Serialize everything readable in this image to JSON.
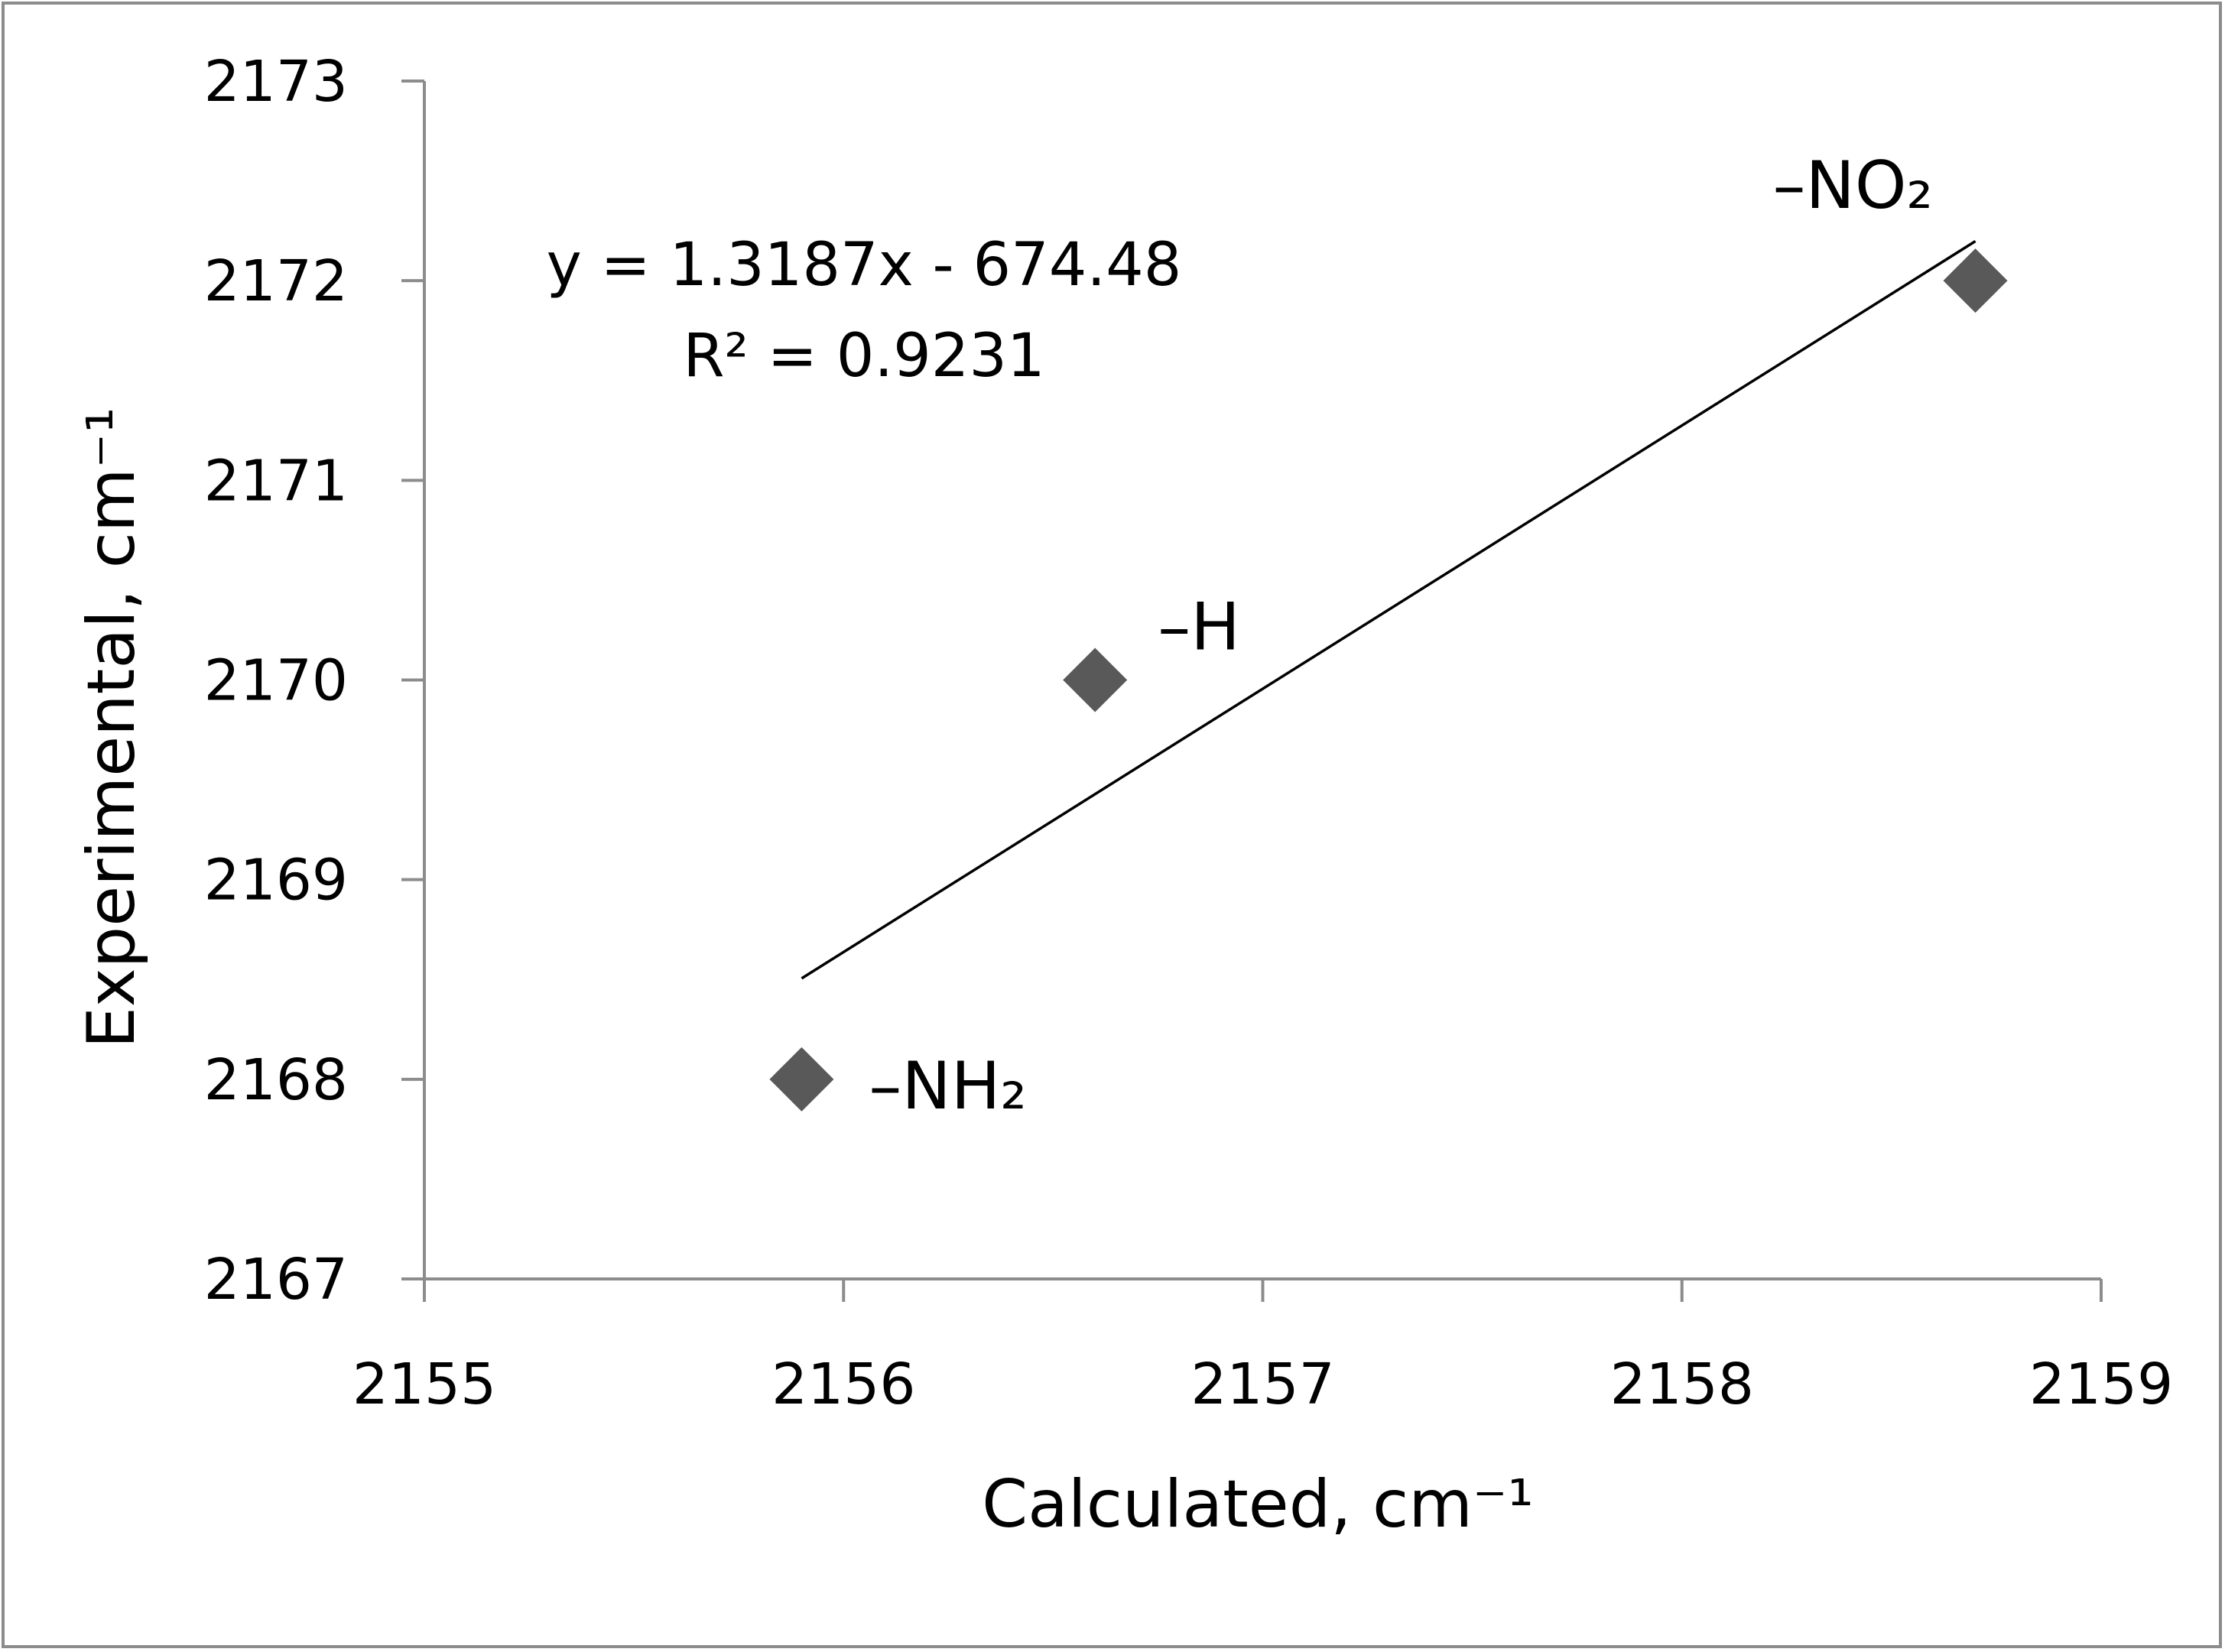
{
  "chart_data": {
    "type": "scatter",
    "title": "",
    "xlabel": "Calculated, cm⁻¹",
    "ylabel": "Experimental, cm⁻¹",
    "xlim": [
      2155,
      2159
    ],
    "ylim": [
      2167,
      2173
    ],
    "xticks": [
      "2155",
      "2156",
      "2157",
      "2158",
      "2159"
    ],
    "yticks": [
      "2167",
      "2168",
      "2169",
      "2170",
      "2171",
      "2172",
      "2173"
    ],
    "grid": false,
    "legend": "none",
    "marker_color": "#595959",
    "points": [
      {
        "label": "–NH₂",
        "x": 2155.9,
        "y": 2168.0
      },
      {
        "label": "–H",
        "x": 2156.6,
        "y": 2170.0
      },
      {
        "label": "–NO₂",
        "x": 2158.7,
        "y": 2172.0
      }
    ],
    "trendline": {
      "type": "linear",
      "slope": 1.3187,
      "intercept": -674.48,
      "x_range": [
        2155.9,
        2158.7
      ],
      "equation": "y = 1.3187x - 674.48",
      "r_squared": "R² = 0.9231"
    }
  }
}
